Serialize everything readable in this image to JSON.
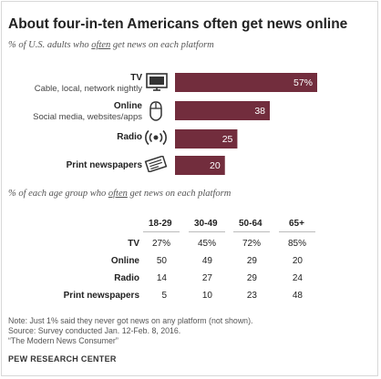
{
  "title": "About four-in-ten Americans often get news online",
  "subtitle1": {
    "pre": "% of U.S. adults who ",
    "u": "often",
    "post": " get news on each platform"
  },
  "subtitle2": {
    "pre": "% of each age group who ",
    "u": "often",
    "post": " get news on each platform"
  },
  "platforms": [
    {
      "name": "TV",
      "sub": "Cable, local, network nightly",
      "icon": "tv-icon"
    },
    {
      "name": "Online",
      "sub": "Social media, websites/apps",
      "icon": "computer-mouse-icon"
    },
    {
      "name": "Radio",
      "sub": "",
      "icon": "radio-waves-icon"
    },
    {
      "name": "Print newspapers",
      "sub": "",
      "icon": "newspaper-icon"
    }
  ],
  "colors": {
    "bar": "#722d3d",
    "bar_label": "#ffffff"
  },
  "chart_data": [
    {
      "type": "bar",
      "orientation": "horizontal",
      "categories": [
        "TV",
        "Online",
        "Radio",
        "Print newspapers"
      ],
      "values": [
        57,
        38,
        25,
        20
      ],
      "value_labels": [
        "57%",
        "38",
        "25",
        "20"
      ],
      "xlim": [
        0,
        57
      ]
    },
    {
      "type": "table",
      "columns": [
        "18-29",
        "30-49",
        "50-64",
        "65+"
      ],
      "rows": [
        {
          "label": "TV",
          "values": [
            "27%",
            "45%",
            "72%",
            "85%"
          ]
        },
        {
          "label": "Online",
          "values": [
            "50",
            "49",
            "29",
            "20"
          ]
        },
        {
          "label": "Radio",
          "values": [
            "14",
            "27",
            "29",
            "24"
          ]
        },
        {
          "label": "Print newspapers",
          "values": [
            "5",
            "10",
            "23",
            "48"
          ]
        }
      ]
    }
  ],
  "notes": [
    "Note: Just 1% said they never got news on any platform (not shown).",
    "Source: Survey conducted Jan. 12-Feb. 8, 2016.",
    "“The Modern News Consumer”"
  ],
  "source_org": "PEW RESEARCH CENTER"
}
